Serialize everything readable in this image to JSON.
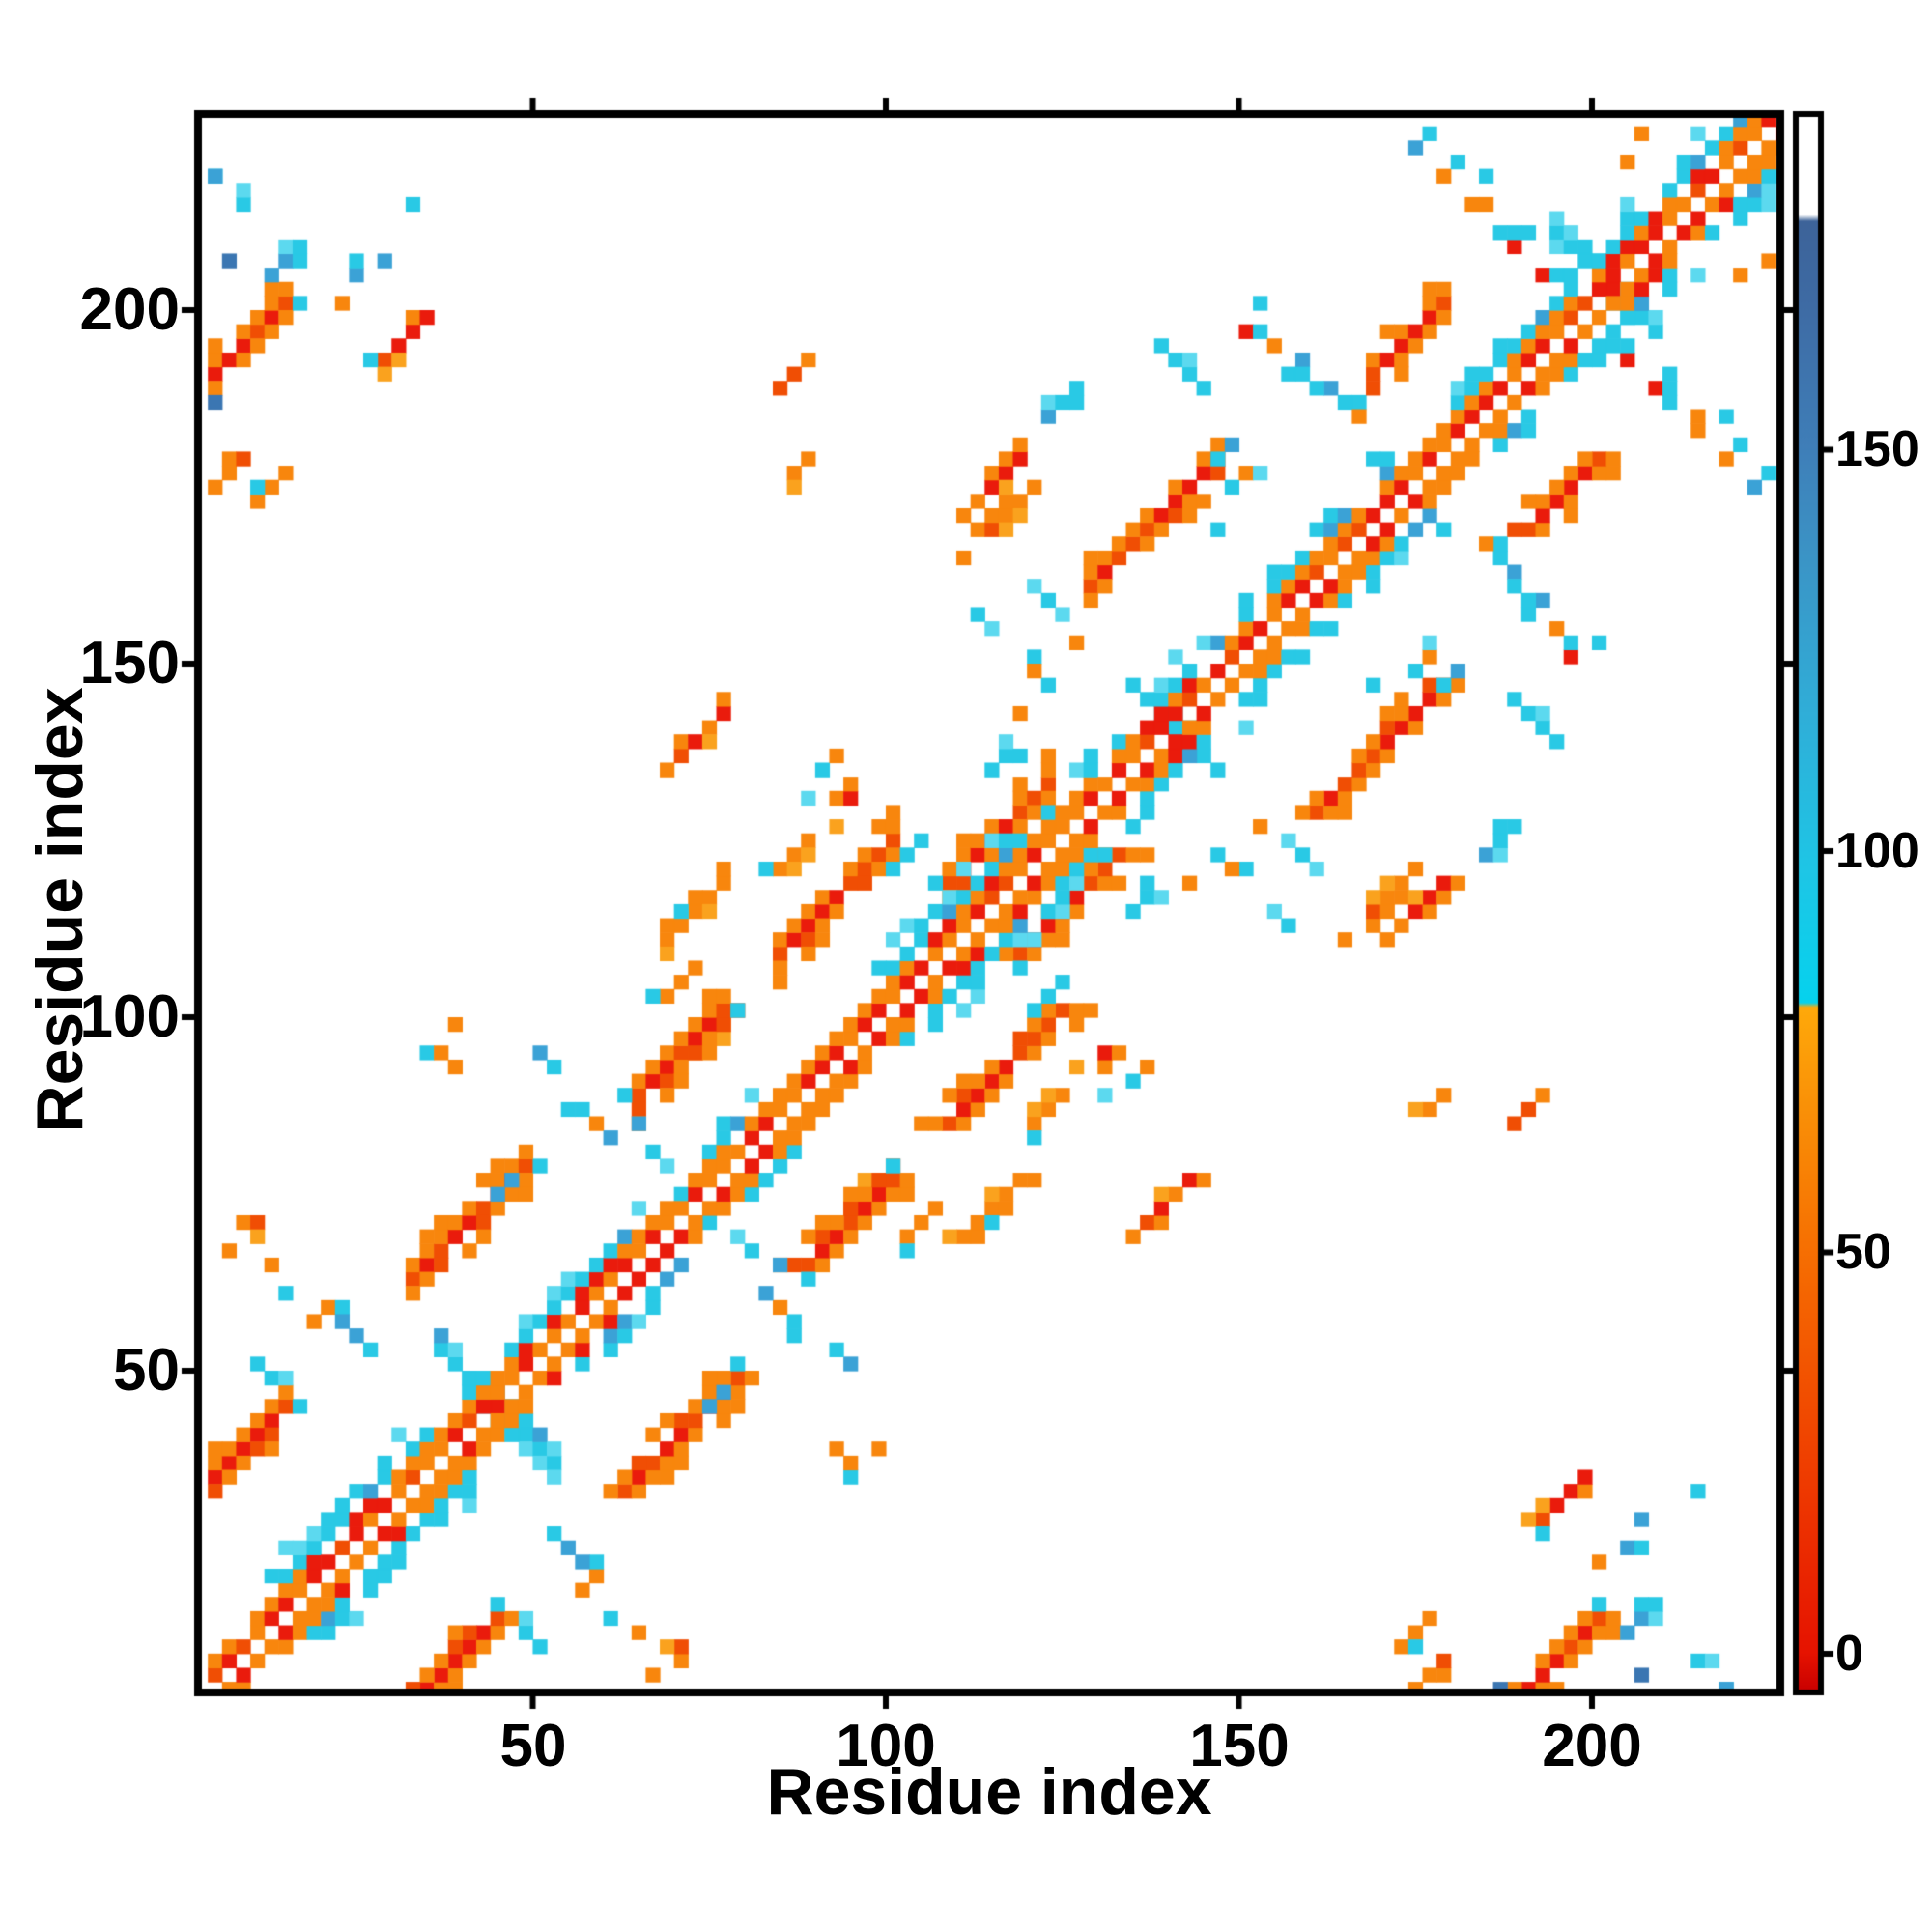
{
  "chart_data": {
    "type": "heatmap",
    "title": "",
    "xlabel": "Residue index",
    "ylabel": "Residue index",
    "x_ticks": [
      50,
      100,
      150,
      200
    ],
    "y_ticks": [
      50,
      100,
      150,
      200
    ],
    "x_tick_labels": [
      "50",
      "100",
      "150",
      "200"
    ],
    "y_tick_labels": [
      "50",
      "100",
      "150",
      "200"
    ],
    "x_range": [
      1,
      227
    ],
    "y_range": [
      1,
      227
    ],
    "grid": false,
    "legend_position": "none",
    "cell_residues": 2,
    "matrix_cells": 112,
    "symmetric": true,
    "palette": {
      "red": "#ea1b0c",
      "deep_orange": "#f04e04",
      "orange": "#f8860d",
      "light_orange": "#faa21e",
      "cyan": "#29c9e5",
      "light_cyan": "#5cd9ef",
      "blue": "#3ba2d6",
      "steel_blue": "#3b76b2",
      "background": "#ffffff"
    },
    "colorbar": {
      "orientation": "vertical",
      "position": "right",
      "ticks": [
        0,
        50,
        100,
        150
      ],
      "tick_labels": [
        "0",
        "50",
        "100",
        "150"
      ],
      "value_range": [
        -5,
        193
      ],
      "gradient_stops_from_bottom": [
        [
          0.0,
          "#c80000"
        ],
        [
          0.025,
          "#e61300"
        ],
        [
          0.14,
          "#ef3d00"
        ],
        [
          0.28,
          "#f66f02"
        ],
        [
          0.38,
          "#fa9408"
        ],
        [
          0.434,
          "#ffa90a"
        ],
        [
          0.437,
          "#06d2ee"
        ],
        [
          0.52,
          "#1ec6e6"
        ],
        [
          0.62,
          "#30aed8"
        ],
        [
          0.72,
          "#3b94c6"
        ],
        [
          0.79,
          "#3f7eb8"
        ],
        [
          0.88,
          "#3e6ba4"
        ],
        [
          0.932,
          "#3d6399"
        ],
        [
          0.936,
          "#ffffff"
        ],
        [
          1.0,
          "#ffffff"
        ]
      ]
    },
    "diagonal": {
      "core": "white",
      "inner_flank": "red-orange checker",
      "cyan_flank_segments": [
        [
          12,
          36
        ],
        [
          40,
          66
        ],
        [
          74,
          82
        ],
        [
          97,
          124
        ],
        [
          127,
          152
        ],
        [
          155,
          172
        ],
        [
          180,
          195
        ],
        [
          197,
          228
        ]
      ],
      "wide_segments": [
        [
          13,
          34
        ],
        [
          48,
          64
        ],
        [
          99,
          122
        ],
        [
          131,
          150
        ],
        [
          200,
          227
        ]
      ]
    },
    "clusters": [
      {
        "i": 9,
        "j": 39,
        "len": 14,
        "dir": 1,
        "type": "red"
      },
      {
        "i": 9,
        "j": 195,
        "len": 14,
        "dir": 1,
        "type": "red"
      },
      {
        "i": 6,
        "j": 216,
        "len": 8,
        "dir": -1,
        "type": "cold"
      },
      {
        "i": 15,
        "j": 207,
        "len": 6,
        "dir": 1,
        "type": "cold"
      },
      {
        "i": 28,
        "j": 208,
        "len": 12,
        "dir": 1,
        "type": "mixed"
      },
      {
        "i": 33,
        "j": 196,
        "len": 8,
        "dir": 1,
        "type": "orange"
      },
      {
        "i": 7,
        "j": 176,
        "len": 8,
        "dir": 1,
        "type": "orange"
      },
      {
        "i": 40,
        "j": 70,
        "len": 18,
        "dir": 1,
        "type": "red"
      },
      {
        "i": 44,
        "j": 44,
        "len": 18,
        "dir": -1,
        "type": "coldx"
      },
      {
        "i": 56,
        "j": 87,
        "len": 12,
        "dir": -1,
        "type": "coldmix"
      },
      {
        "i": 77,
        "j": 99,
        "len": 8,
        "dir": 1,
        "type": "orange"
      },
      {
        "i": 70,
        "j": 95,
        "len": 14,
        "dir": 1,
        "type": "red"
      },
      {
        "i": 36,
        "j": 94,
        "len": 8,
        "dir": 1,
        "type": "mixedhot"
      },
      {
        "i": 92,
        "j": 117,
        "len": 18,
        "dir": 1,
        "type": "red"
      },
      {
        "i": 72,
        "j": 139,
        "len": 10,
        "dir": 1,
        "type": "orange"
      },
      {
        "i": 93,
        "j": 135,
        "len": 8,
        "dir": 1,
        "type": "coldmix"
      },
      {
        "i": 90,
        "j": 126,
        "len": 12,
        "dir": 1,
        "type": "orange"
      },
      {
        "i": 117,
        "j": 127,
        "len": 16,
        "dir": 1,
        "type": "red"
      },
      {
        "i": 102,
        "j": 122,
        "len": 6,
        "dir": 1,
        "type": "cold"
      },
      {
        "i": 119,
        "j": 150,
        "len": 12,
        "dir": -1,
        "type": "coldmix"
      },
      {
        "i": 137,
        "j": 144,
        "len": 10,
        "dir": -1,
        "type": "cold"
      },
      {
        "i": 123,
        "j": 159,
        "len": 10,
        "dir": -1,
        "type": "coldmix"
      },
      {
        "i": 117,
        "j": 170,
        "len": 12,
        "dir": 1,
        "type": "orange"
      },
      {
        "i": 139,
        "j": 170,
        "len": 20,
        "dir": 1,
        "type": "red"
      },
      {
        "i": 150,
        "j": 174,
        "len": 9,
        "dir": 1,
        "type": "coldmix"
      },
      {
        "i": 160,
        "j": 188,
        "len": 20,
        "dir": -1,
        "type": "mixed"
      },
      {
        "i": 175,
        "j": 196,
        "len": 12,
        "dir": 1,
        "type": "red"
      },
      {
        "i": 115,
        "j": 174,
        "len": 10,
        "dir": 1,
        "type": "orange"
      },
      {
        "i": 140,
        "j": 192,
        "len": 9,
        "dir": -1,
        "type": "cold"
      },
      {
        "i": 185,
        "j": 215,
        "len": 22,
        "dir": -1,
        "type": "mixed"
      },
      {
        "i": 203,
        "j": 203,
        "len": 16,
        "dir": -1,
        "type": "coldx"
      },
      {
        "i": 39,
        "j": 90,
        "len": 7,
        "dir": 1,
        "type": "mixedhot"
      },
      {
        "i": 21,
        "j": 56,
        "len": 16,
        "dir": -1,
        "type": "mixed"
      },
      {
        "i": 8,
        "j": 68,
        "len": 5,
        "dir": 1,
        "type": "orange"
      },
      {
        "i": 12,
        "j": 48,
        "len": 6,
        "dir": -1,
        "type": "cold"
      },
      {
        "i": 46,
        "j": 77,
        "len": 4,
        "dir": 1,
        "type": "coldblue"
      },
      {
        "i": 72,
        "j": 115,
        "len": 9,
        "dir": 1,
        "type": "orange"
      },
      {
        "i": 13,
        "j": 175,
        "len": 5,
        "dir": 1,
        "type": "orange"
      },
      {
        "i": 67,
        "j": 80,
        "len": 10,
        "dir": -1,
        "type": "coldmix"
      },
      {
        "i": 70,
        "j": 104,
        "len": 6,
        "dir": 1,
        "type": "orange"
      },
      {
        "i": 4,
        "j": 218,
        "len": 4,
        "dir": 1,
        "type": "coldblue"
      },
      {
        "i": 4,
        "j": 186,
        "len": 4,
        "dir": 1,
        "type": "coldblue"
      },
      {
        "i": 89,
        "j": 179,
        "len": 3,
        "dir": 1,
        "type": "orange"
      },
      {
        "i": 86,
        "j": 191,
        "len": 6,
        "dir": 1,
        "type": "orange"
      },
      {
        "i": 124,
        "j": 186,
        "len": 5,
        "dir": 1,
        "type": "cold"
      },
      {
        "i": 148,
        "j": 181,
        "len": 4,
        "dir": 1,
        "type": "cold"
      },
      {
        "i": 7,
        "j": 207,
        "len": 2,
        "dir": 1,
        "type": "coldblue"
      },
      {
        "i": 205,
        "j": 220,
        "len": 6,
        "dir": 1,
        "type": "coldmix"
      },
      {
        "i": 116,
        "j": 137,
        "len": 4,
        "dir": 1,
        "type": "cold"
      },
      {
        "i": 121,
        "j": 146,
        "len": 3,
        "dir": 1,
        "type": "mixedhot"
      }
    ]
  }
}
